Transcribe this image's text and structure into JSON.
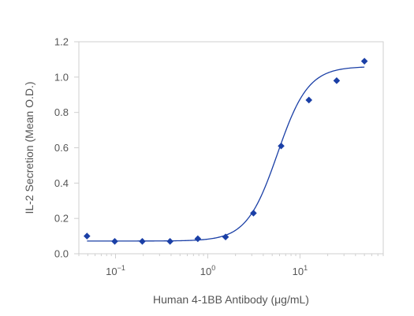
{
  "chart_data": {
    "type": "scatter",
    "title": "",
    "xlabel": "Human 4-1BB Antibody (μg/mL)",
    "ylabel": "IL-2 Secretion (Mean O.D.)",
    "x_scale": "log",
    "xlim": [
      0.04,
      80
    ],
    "ylim": [
      0,
      1.2
    ],
    "x_ticks": [
      {
        "value": 0.1,
        "base": "10",
        "exp": "−1"
      },
      {
        "value": 1,
        "base": "10",
        "exp": "0"
      },
      {
        "value": 10,
        "base": "10",
        "exp": "1"
      }
    ],
    "y_ticks": [
      {
        "value": 0.0,
        "label": "0.0"
      },
      {
        "value": 0.2,
        "label": "0.2"
      },
      {
        "value": 0.4,
        "label": "0.4"
      },
      {
        "value": 0.6,
        "label": "0.6"
      },
      {
        "value": 0.8,
        "label": "0.8"
      },
      {
        "value": 1.0,
        "label": "1.0"
      },
      {
        "value": 1.2,
        "label": "1.2"
      }
    ],
    "grid": false,
    "series": [
      {
        "marker": "diamond",
        "color": "#1a3fa6",
        "x": [
          0.049,
          0.098,
          0.195,
          0.39,
          0.78,
          1.56,
          3.13,
          6.25,
          12.5,
          25,
          50
        ],
        "y": [
          0.1,
          0.07,
          0.07,
          0.07,
          0.085,
          0.095,
          0.23,
          0.61,
          0.87,
          0.98,
          1.09
        ]
      }
    ],
    "fit": {
      "type": "4PL",
      "color": "#1a3fa6",
      "bottom": 0.072,
      "top": 1.06,
      "ec50": 5.7,
      "hill": 2.6,
      "x_range": [
        0.049,
        50
      ]
    }
  }
}
